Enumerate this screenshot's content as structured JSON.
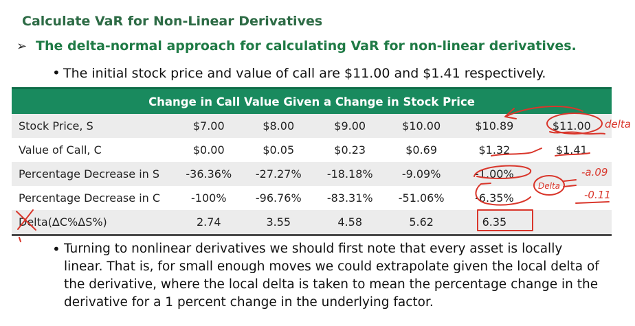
{
  "slide": {
    "title": "Calculate VaR for Non-Linear Derivatives",
    "bullet1": "The delta-normal approach for calculating VaR for non-linear derivatives.",
    "bullet2": "The initial stock price and value of call are $11.00 and $1.41 respectively.",
    "paragraph": "Turning to nonlinear derivatives we should first note that every asset is locally linear. That is, for small enough moves we could extrapolate given the local delta of the derivative, where the local delta is taken to mean the percentage change in the derivative for a 1 percent change in the underlying factor."
  },
  "table": {
    "header": "Change in Call Value Given a Change in Stock Price",
    "rows": [
      {
        "label": "Stock Price, S",
        "cells": [
          "$7.00",
          "$8.00",
          "$9.00",
          "$10.00",
          "$10.89",
          "$11.00"
        ]
      },
      {
        "label": "Value of Call, C",
        "cells": [
          "$0.00",
          "$0.05",
          "$0.23",
          "$0.69",
          "$1.32",
          "$1.41"
        ]
      },
      {
        "label": "Percentage Decrease in S",
        "cells": [
          "-36.36%",
          "-27.27%",
          "-18.18%",
          "-9.09%",
          "-1.00%",
          ""
        ]
      },
      {
        "label": "Percentage Decrease in C",
        "cells": [
          "-100%",
          "-96.76%",
          "-83.31%",
          "-51.06%",
          "-6.35%",
          ""
        ]
      },
      {
        "label": "Delta(ΔC%ΔS%)",
        "cells": [
          "2.74",
          "3.55",
          "4.58",
          "5.62",
          "6.35",
          ""
        ]
      }
    ]
  },
  "annotations": {
    "word_delta_top": "delta",
    "word_delta_mid": "Delta",
    "value_a": "-a.09",
    "value_b": "-0.11",
    "colors": {
      "ink": "#d9362b",
      "accent": "#198a5e"
    }
  }
}
